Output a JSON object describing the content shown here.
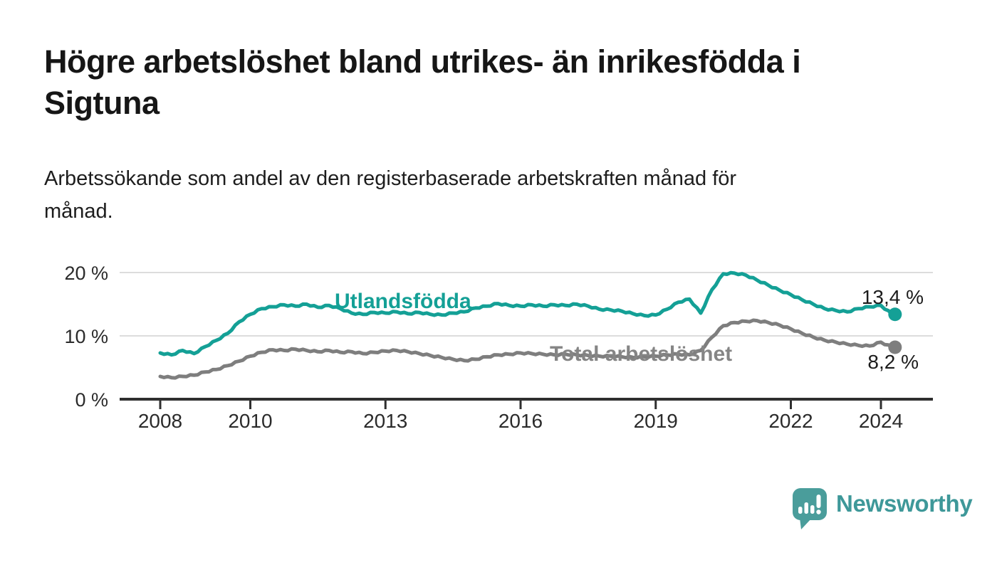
{
  "header": {
    "title_lines": [
      "Högre arbetslöshet bland utrikes- än inrikesfödda i",
      "Sigtuna"
    ],
    "subtitle_lines": [
      "Arbetssökande som andel av den registerbaserade arbetskraften månad för",
      "månad."
    ]
  },
  "chart_data": {
    "type": "line",
    "title": "Högre arbetslöshet bland utrikes- än inrikesfödda i Sigtuna",
    "subtitle": "Arbetssökande som andel av den registerbaserade arbetskraften månad för månad.",
    "unit": "%",
    "ylim": [
      0,
      21
    ],
    "grid": true,
    "legend_position": "inline-on-lines",
    "grid_color": "#DCDCDC",
    "axis_color": "#2F2F2F",
    "tick_label_color": "#2B2B2B",
    "x": [
      2008,
      2008.25,
      2008.5,
      2008.75,
      2009,
      2009.25,
      2009.5,
      2009.75,
      2010,
      2010.25,
      2010.5,
      2010.75,
      2011,
      2011.25,
      2011.5,
      2011.75,
      2012,
      2012.25,
      2012.5,
      2012.75,
      2013,
      2013.25,
      2013.5,
      2013.75,
      2014,
      2014.25,
      2014.5,
      2014.75,
      2015,
      2015.25,
      2015.5,
      2015.75,
      2016,
      2016.25,
      2016.5,
      2016.75,
      2017,
      2017.25,
      2017.5,
      2017.75,
      2018,
      2018.25,
      2018.5,
      2018.75,
      2019,
      2019.25,
      2019.5,
      2019.75,
      2020,
      2020.25,
      2020.5,
      2020.75,
      2021,
      2021.25,
      2021.5,
      2021.75,
      2022,
      2022.25,
      2022.5,
      2022.75,
      2023,
      2023.25,
      2023.5,
      2023.75,
      2024,
      2024.25
    ],
    "series": [
      {
        "name": "Utlandsfödda",
        "color": "#14A096",
        "end_label": "13,4 %",
        "end_value": 13.4,
        "values": [
          7.3,
          7.0,
          7.7,
          7.2,
          8.3,
          9.3,
          10.4,
          12.2,
          13.4,
          14.3,
          14.6,
          14.9,
          14.7,
          15.0,
          14.5,
          14.8,
          14.3,
          13.6,
          13.4,
          13.7,
          13.6,
          13.8,
          13.5,
          13.7,
          13.4,
          13.3,
          13.6,
          13.8,
          14.4,
          14.7,
          15.1,
          14.8,
          14.7,
          14.9,
          14.7,
          14.9,
          14.8,
          15.0,
          14.7,
          14.2,
          14.1,
          13.9,
          13.5,
          13.2,
          13.3,
          14.2,
          15.3,
          15.8,
          13.6,
          17.3,
          19.8,
          19.9,
          19.6,
          18.8,
          18.0,
          17.2,
          16.5,
          15.7,
          15.0,
          14.3,
          14.0,
          13.8,
          14.3,
          14.6,
          14.8,
          13.4
        ]
      },
      {
        "name": "Total arbetslöshet",
        "color": "#7E7E7E",
        "end_label": "8,2 %",
        "end_value": 8.2,
        "values": [
          3.6,
          3.4,
          3.6,
          3.8,
          4.3,
          4.7,
          5.3,
          6.0,
          6.8,
          7.4,
          7.8,
          7.7,
          7.9,
          7.7,
          7.5,
          7.7,
          7.4,
          7.5,
          7.2,
          7.4,
          7.6,
          7.7,
          7.5,
          7.2,
          6.9,
          6.6,
          6.3,
          6.1,
          6.3,
          6.7,
          7.0,
          7.1,
          7.3,
          7.2,
          7.1,
          7.0,
          7.1,
          7.0,
          6.9,
          6.8,
          6.8,
          6.7,
          6.6,
          6.7,
          6.8,
          7.0,
          7.1,
          7.0,
          7.7,
          9.8,
          11.6,
          12.1,
          12.3,
          12.4,
          12.1,
          11.7,
          11.1,
          10.4,
          9.8,
          9.3,
          9.0,
          8.7,
          8.5,
          8.4,
          9.0,
          8.2
        ]
      }
    ],
    "x_ticks": [
      {
        "year": 2008,
        "label": "2008"
      },
      {
        "year": 2010,
        "label": "2010"
      },
      {
        "year": 2013,
        "label": "2013"
      },
      {
        "year": 2016,
        "label": "2016"
      },
      {
        "year": 2019,
        "label": "2019"
      },
      {
        "year": 2022,
        "label": "2022"
      },
      {
        "year": 2024,
        "label": "2024"
      }
    ],
    "y_ticks": [
      {
        "value": 0,
        "label": "0 %"
      },
      {
        "value": 10,
        "label": "10 %"
      },
      {
        "value": 20,
        "label": "20 %"
      }
    ]
  },
  "footer": {
    "logo_text": "Newsworthy",
    "logo_color": "#4A9D9B"
  }
}
